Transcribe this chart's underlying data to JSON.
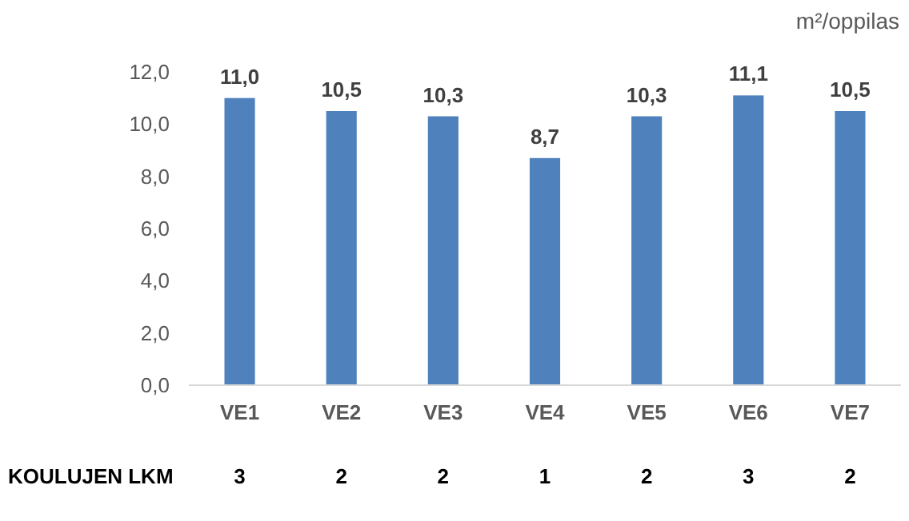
{
  "chart_data": {
    "type": "bar",
    "ylabel": "m²/oppilas",
    "categories": [
      "VE1",
      "VE2",
      "VE3",
      "VE4",
      "VE5",
      "VE6",
      "VE7"
    ],
    "values": [
      11.0,
      10.5,
      10.3,
      8.7,
      10.3,
      11.1,
      10.5
    ],
    "value_labels": [
      "11,0",
      "10,5",
      "10,3",
      "8,7",
      "10,3",
      "11,1",
      "10,5"
    ],
    "color": "#4f81bd",
    "ylim": [
      0,
      12
    ],
    "yticks": [
      {
        "value": 0,
        "label": "0,0"
      },
      {
        "value": 2,
        "label": "2,0"
      },
      {
        "value": 4,
        "label": "4,0"
      },
      {
        "value": 6,
        "label": "6,0"
      },
      {
        "value": 8,
        "label": "8,0"
      },
      {
        "value": 10,
        "label": "10,0"
      },
      {
        "value": 12,
        "label": "12,0"
      }
    ],
    "annotations": [
      "KOULUJEN LKM",
      "3",
      "2",
      "2",
      "1",
      "2",
      "3",
      "2"
    ]
  }
}
